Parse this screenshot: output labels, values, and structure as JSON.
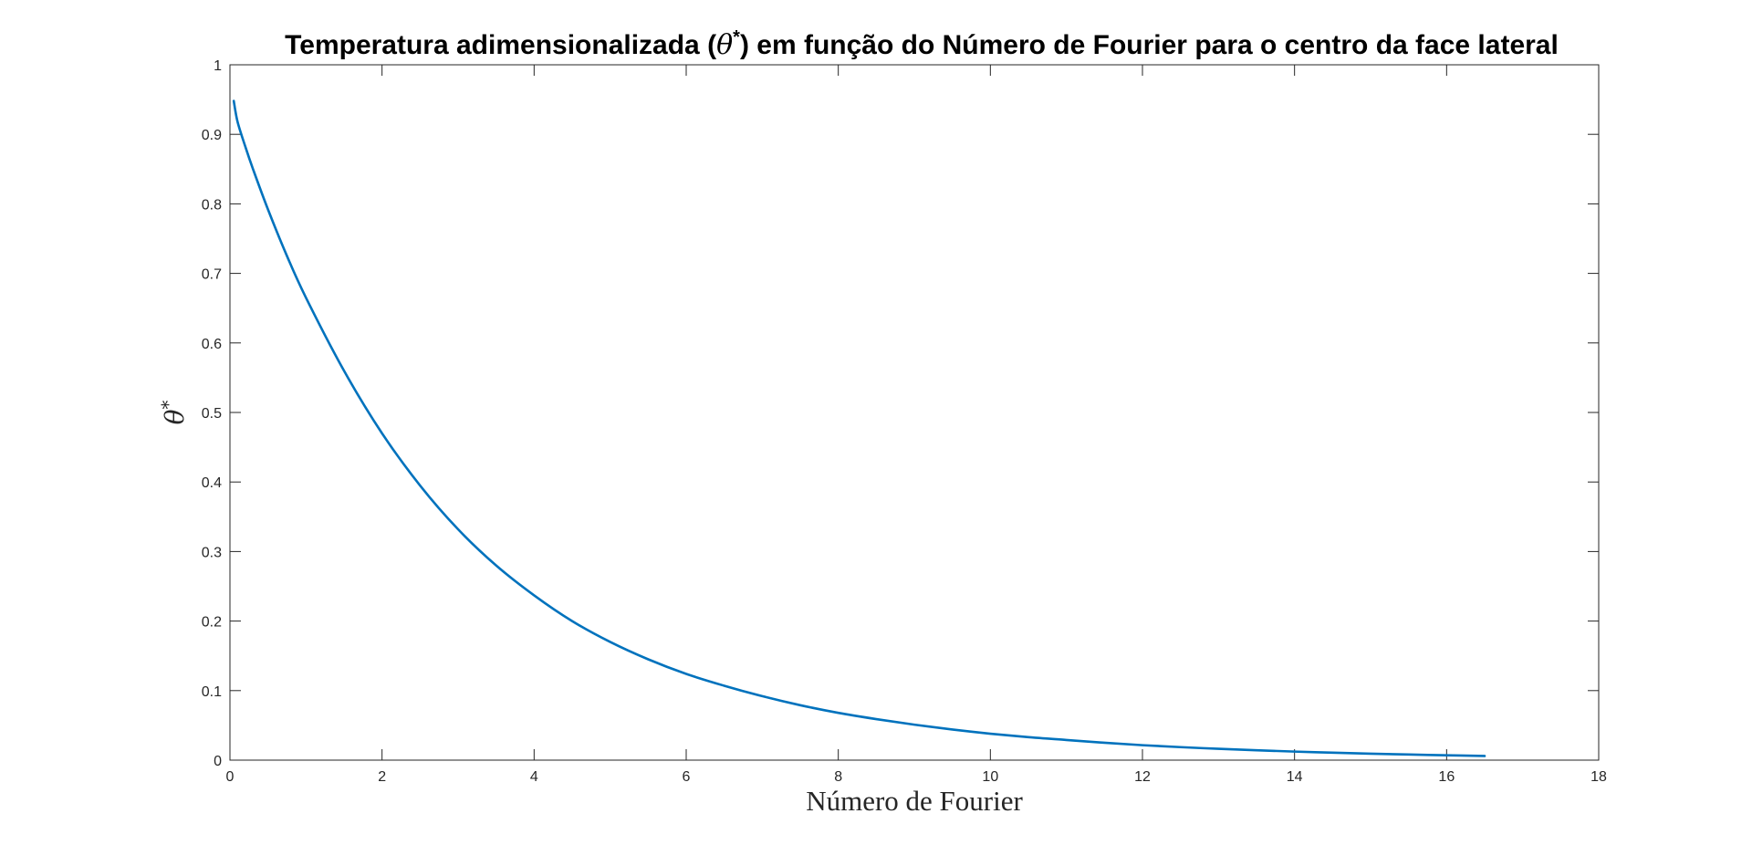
{
  "chart_data": {
    "type": "line",
    "title": {
      "prefix": "Temperatura adimensionalizada (",
      "symbol": "θ",
      "superscript": "*",
      "suffix": ") em função do Número de Fourier para o centro da face lateral"
    },
    "xlabel": "Número de Fourier",
    "ylabel": {
      "symbol": "θ",
      "superscript": "*"
    },
    "xlim": [
      0,
      18
    ],
    "ylim": [
      0,
      1
    ],
    "xticks": [
      0,
      2,
      4,
      6,
      8,
      10,
      12,
      14,
      16,
      18
    ],
    "xtick_labels": [
      "0",
      "2",
      "4",
      "6",
      "8",
      "10",
      "12",
      "14",
      "16",
      "18"
    ],
    "yticks": [
      0,
      0.1,
      0.2,
      0.3,
      0.4,
      0.5,
      0.6,
      0.7,
      0.8,
      0.9,
      1
    ],
    "ytick_labels": [
      "0",
      "0.1",
      "0.2",
      "0.3",
      "0.4",
      "0.5",
      "0.6",
      "0.7",
      "0.8",
      "0.9",
      "1"
    ],
    "grid": false,
    "line_color": "#0072BD",
    "series": [
      {
        "x": [
          0.05,
          0.1,
          0.2,
          0.3,
          0.5,
          0.75,
          1,
          1.5,
          2,
          2.5,
          3,
          3.5,
          4,
          4.5,
          5,
          5.5,
          6,
          6.5,
          7,
          7.5,
          8,
          8.5,
          9,
          9.5,
          10,
          10.5,
          11,
          11.5,
          12,
          12.5,
          13,
          13.5,
          14,
          14.5,
          15,
          15.5,
          16,
          16.5
        ],
        "y": [
          0.948,
          0.918,
          0.883,
          0.851,
          0.792,
          0.725,
          0.665,
          0.56,
          0.47,
          0.395,
          0.332,
          0.28,
          0.237,
          0.2,
          0.17,
          0.145,
          0.124,
          0.107,
          0.092,
          0.079,
          0.068,
          0.059,
          0.051,
          0.044,
          0.038,
          0.033,
          0.029,
          0.025,
          0.0215,
          0.0187,
          0.0163,
          0.0142,
          0.0123,
          0.0107,
          0.0093,
          0.0081,
          0.007,
          0.006
        ]
      }
    ]
  }
}
